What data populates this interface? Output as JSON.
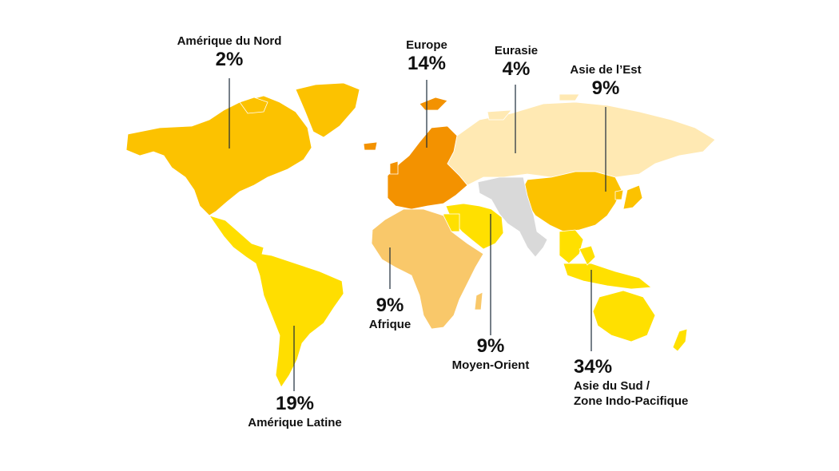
{
  "colors": {
    "north_america": "#FCC200",
    "latin_america": "#FFDE00",
    "europe": "#F39200",
    "eurasia": "#FFE9B3",
    "east_asia": "#FCC200",
    "middle_east": "#FFE000",
    "africa": "#F9C86A",
    "south_asia_indo_pacific": "#FFE000",
    "no_data": "#D9D9D9",
    "leader": "#1a2a3a"
  },
  "regions": [
    {
      "id": "amerique-du-nord",
      "name": "Amérique du Nord",
      "pct": "2%"
    },
    {
      "id": "europe",
      "name": "Europe",
      "pct": "14%"
    },
    {
      "id": "eurasie",
      "name": "Eurasie",
      "pct": "4%"
    },
    {
      "id": "asie-de-l-est",
      "name": "Asie de l’Est",
      "pct": "9%"
    },
    {
      "id": "afrique",
      "name": "Afrique",
      "pct": "9%"
    },
    {
      "id": "moyen-orient",
      "name": "Moyen-Orient",
      "pct": "9%"
    },
    {
      "id": "amerique-latine",
      "name": "Amérique Latine",
      "pct": "19%"
    },
    {
      "id": "asie-du-sud",
      "name_line1": "Asie du Sud /",
      "name_line2": "Zone Indo-Pacifique",
      "pct": "34%"
    }
  ]
}
